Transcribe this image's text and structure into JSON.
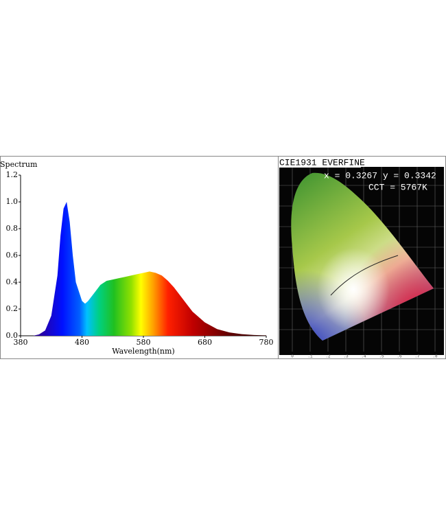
{
  "chart_data": {
    "type": "area",
    "y_label": "Spectrum",
    "x_label": "Wavelength(nm)",
    "x": [
      380,
      400,
      410,
      420,
      430,
      440,
      445,
      450,
      455,
      460,
      465,
      470,
      480,
      485,
      490,
      500,
      510,
      520,
      530,
      540,
      550,
      560,
      570,
      580,
      590,
      600,
      610,
      620,
      630,
      640,
      650,
      660,
      680,
      700,
      720,
      740,
      760,
      780
    ],
    "values": [
      0,
      0,
      0.01,
      0.04,
      0.15,
      0.45,
      0.75,
      0.95,
      1.0,
      0.85,
      0.6,
      0.4,
      0.26,
      0.24,
      0.26,
      0.32,
      0.38,
      0.41,
      0.42,
      0.43,
      0.44,
      0.45,
      0.46,
      0.47,
      0.48,
      0.47,
      0.45,
      0.41,
      0.36,
      0.3,
      0.24,
      0.18,
      0.1,
      0.05,
      0.025,
      0.012,
      0.006,
      0.003
    ],
    "xlim": [
      380,
      780
    ],
    "xticks": [
      380,
      480,
      580,
      680,
      780
    ],
    "ylim": [
      0,
      1.2
    ],
    "yticks": [
      {
        "value": 0,
        "label": "0.0"
      },
      0.2,
      0.4,
      0.6,
      0.8,
      {
        "value": 1,
        "label": "1.0"
      },
      1.2
    ]
  },
  "cie_panel": {
    "title": "CIE1931 EVERFINE",
    "coordinates": "x = 0.3267 y = 0.3342",
    "cct": "CCT = 5767K",
    "x_axis_labels": [
      "0",
      ".1",
      ".2",
      ".3",
      ".4",
      ".5",
      ".6",
      ".7",
      ".8"
    ]
  }
}
